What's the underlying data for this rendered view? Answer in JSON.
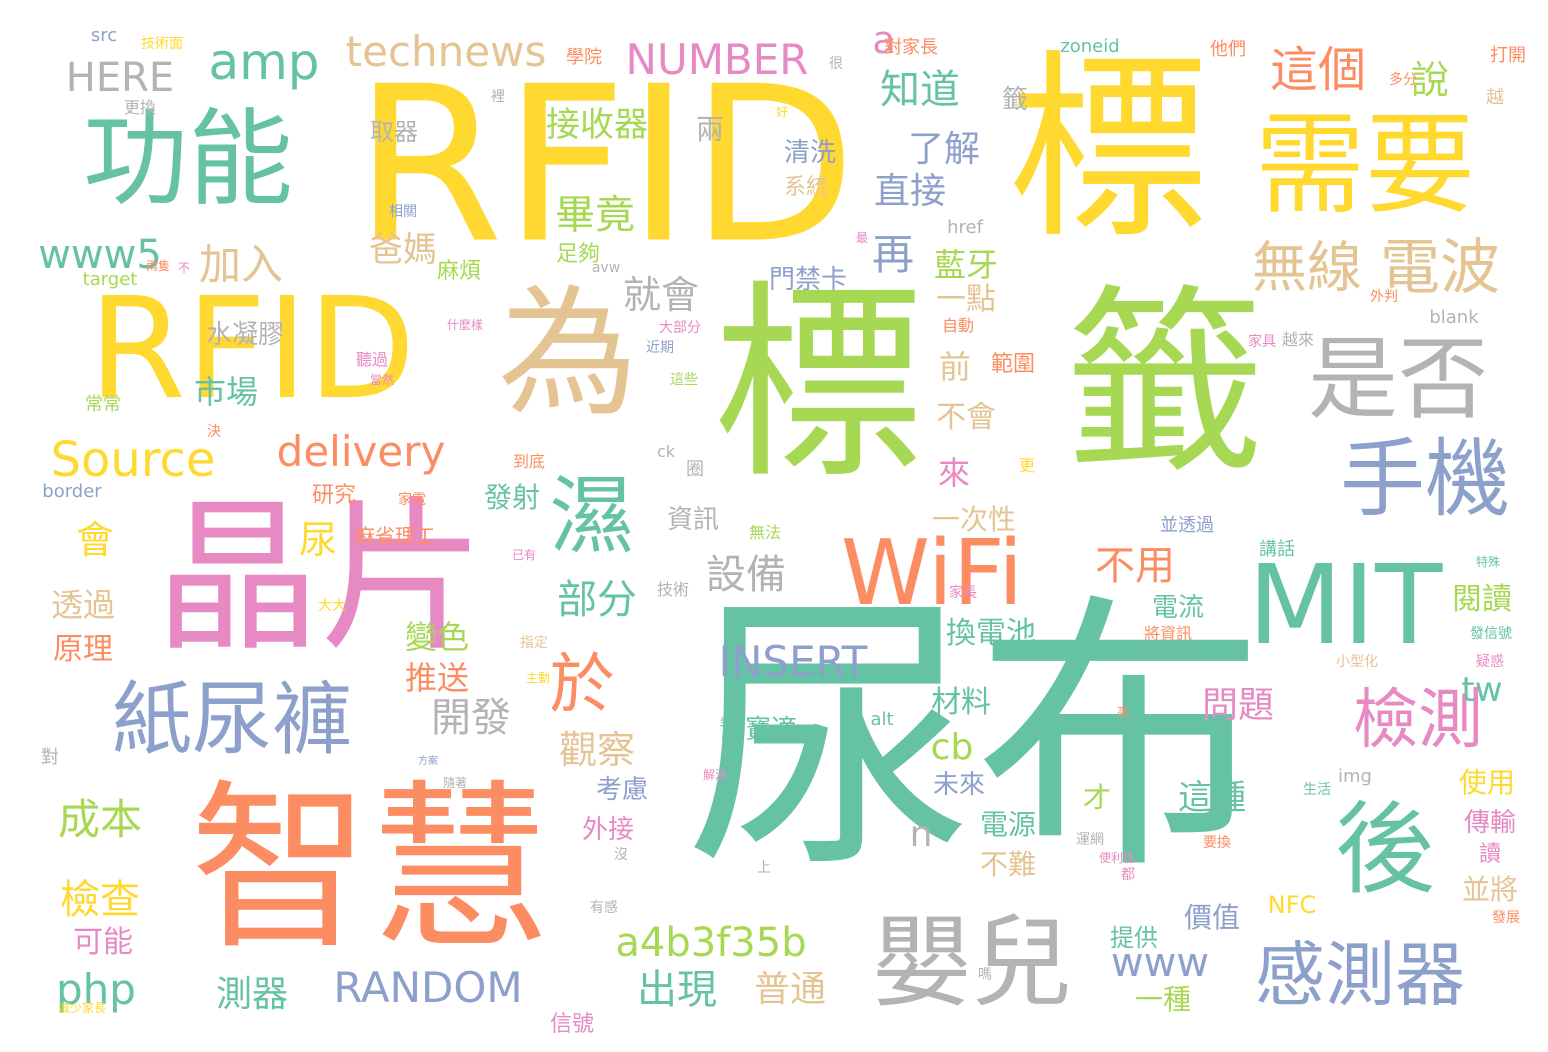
{
  "words": [
    {
      "id": "w1",
      "text": "尿布",
      "color": "#66c2a5"
    },
    {
      "id": "w2",
      "text": "RFID",
      "color": "#ffd92f"
    },
    {
      "id": "w3",
      "text": "標",
      "color": "#ffd92f"
    },
    {
      "id": "w4",
      "text": "標",
      "color": "#a6d854"
    },
    {
      "id": "w5",
      "text": "籤",
      "color": "#a6d854"
    },
    {
      "id": "w6",
      "text": "RFID",
      "color": "#ffd92f"
    },
    {
      "id": "w7",
      "text": "為",
      "color": "#e5c494"
    },
    {
      "id": "w8",
      "text": "智慧",
      "color": "#fc8d62"
    },
    {
      "id": "w9",
      "text": "晶片",
      "color": "#e78ac3"
    },
    {
      "id": "w10",
      "text": "需要",
      "color": "#ffd92f"
    },
    {
      "id": "w11",
      "text": "功能",
      "color": "#66c2a5"
    },
    {
      "id": "w12",
      "text": "MIT",
      "color": "#66c2a5"
    },
    {
      "id": "w13",
      "text": "WiFi",
      "color": "#fc8d62"
    },
    {
      "id": "w14",
      "text": "紙尿褲",
      "color": "#8da0cb"
    },
    {
      "id": "w15",
      "text": "嬰兒",
      "color": "#b3b3b3"
    },
    {
      "id": "w16",
      "text": "後",
      "color": "#66c2a5"
    },
    {
      "id": "w17",
      "text": "是否",
      "color": "#b3b3b3"
    },
    {
      "id": "w18",
      "text": "手機",
      "color": "#8da0cb"
    },
    {
      "id": "w19",
      "text": "濕",
      "color": "#66c2a5"
    },
    {
      "id": "w20",
      "text": "感測器",
      "color": "#8da0cb"
    },
    {
      "id": "w21",
      "text": "檢測",
      "color": "#e78ac3"
    },
    {
      "id": "w22",
      "text": "無線",
      "color": "#e5c494"
    },
    {
      "id": "w23",
      "text": "電波",
      "color": "#e5c494"
    },
    {
      "id": "w24",
      "text": "於",
      "color": "#fc8d62"
    },
    {
      "id": "w25",
      "text": "這個",
      "color": "#fc8d62"
    },
    {
      "id": "w26",
      "text": "amp",
      "color": "#66c2a5"
    },
    {
      "id": "w27",
      "text": "technews",
      "color": "#e5c494"
    },
    {
      "id": "w28",
      "text": "NUMBER",
      "color": "#e78ac3"
    },
    {
      "id": "w29",
      "text": "HERE",
      "color": "#b3b3b3"
    },
    {
      "id": "w30",
      "text": "INSERT",
      "color": "#8da0cb"
    },
    {
      "id": "w31",
      "text": "RANDOM",
      "color": "#8da0cb"
    },
    {
      "id": "w32",
      "text": "Source",
      "color": "#ffd92f"
    },
    {
      "id": "w33",
      "text": "delivery",
      "color": "#fc8d62"
    },
    {
      "id": "w34",
      "text": "a4b3f35b",
      "color": "#a6d854"
    },
    {
      "id": "w35",
      "text": "www",
      "color": "#8da0cb"
    },
    {
      "id": "w36",
      "text": "www5",
      "color": "#66c2a5"
    },
    {
      "id": "w37",
      "text": "php",
      "color": "#66c2a5"
    },
    {
      "id": "w38",
      "text": "知道",
      "color": "#66c2a5"
    },
    {
      "id": "w39",
      "text": "說",
      "color": "#a6d854"
    },
    {
      "id": "w40",
      "text": "再",
      "color": "#8da0cb"
    },
    {
      "id": "w41",
      "text": "加入",
      "color": "#e5c494"
    },
    {
      "id": "w42",
      "text": "畢竟",
      "color": "#a6d854"
    },
    {
      "id": "w43",
      "text": "部分",
      "color": "#66c2a5"
    },
    {
      "id": "w44",
      "text": "出現",
      "color": "#66c2a5"
    },
    {
      "id": "w45",
      "text": "普通",
      "color": "#e5c494"
    },
    {
      "id": "w46",
      "text": "觀察",
      "color": "#e5c494"
    },
    {
      "id": "w47",
      "text": "開發",
      "color": "#b3b3b3"
    },
    {
      "id": "w48",
      "text": "設備",
      "color": "#b3b3b3"
    },
    {
      "id": "w49",
      "text": "成本",
      "color": "#a6d854"
    },
    {
      "id": "w50",
      "text": "檢查",
      "color": "#ffd92f"
    },
    {
      "id": "w51",
      "text": "會",
      "color": "#ffd92f"
    },
    {
      "id": "w52",
      "text": "尿",
      "color": "#ffd92f"
    },
    {
      "id": "w53",
      "text": "就會",
      "color": "#b3b3b3"
    },
    {
      "id": "w54",
      "text": "不用",
      "color": "#fc8d62"
    },
    {
      "id": "w55",
      "text": "問題",
      "color": "#e78ac3"
    },
    {
      "id": "w56",
      "text": "閱讀",
      "color": "#a6d854"
    },
    {
      "id": "w57",
      "text": "tw",
      "color": "#66c2a5"
    },
    {
      "id": "w58",
      "text": "cb",
      "color": "#a6d854"
    },
    {
      "id": "w59",
      "text": "n",
      "color": "#b3b3b3"
    },
    {
      "id": "w60",
      "text": "a",
      "color": "#e78ac3"
    },
    {
      "id": "w61",
      "text": "接收器",
      "color": "#a6d854"
    },
    {
      "id": "w62",
      "text": "了解",
      "color": "#8da0cb"
    },
    {
      "id": "w63",
      "text": "直接",
      "color": "#8da0cb"
    },
    {
      "id": "w64",
      "text": "藍牙",
      "color": "#a6d854"
    },
    {
      "id": "w65",
      "text": "爸媽",
      "color": "#e5c494"
    },
    {
      "id": "w66",
      "text": "市場",
      "color": "#66c2a5"
    },
    {
      "id": "w67",
      "text": "透過",
      "color": "#e5c494"
    },
    {
      "id": "w68",
      "text": "原理",
      "color": "#fc8d62"
    },
    {
      "id": "w69",
      "text": "可能",
      "color": "#e78ac3"
    },
    {
      "id": "w70",
      "text": "測器",
      "color": "#66c2a5"
    },
    {
      "id": "w71",
      "text": "變色",
      "color": "#a6d854"
    },
    {
      "id": "w72",
      "text": "推送",
      "color": "#fc8d62"
    },
    {
      "id": "w73",
      "text": "材料",
      "color": "#66c2a5"
    },
    {
      "id": "w74",
      "text": "換電池",
      "color": "#66c2a5"
    },
    {
      "id": "w75",
      "text": "電源",
      "color": "#66c2a5"
    },
    {
      "id": "w76",
      "text": "不難",
      "color": "#e5c494"
    },
    {
      "id": "w77",
      "text": "這種",
      "color": "#66c2a5"
    },
    {
      "id": "w78",
      "text": "一種",
      "color": "#a6d854"
    },
    {
      "id": "w79",
      "text": "價值",
      "color": "#8da0cb"
    },
    {
      "id": "w80",
      "text": "並將",
      "color": "#e5c494"
    },
    {
      "id": "w81",
      "text": "傳輸",
      "color": "#e78ac3"
    },
    {
      "id": "w82",
      "text": "使用",
      "color": "#ffd92f"
    },
    {
      "id": "w83",
      "text": "前",
      "color": "#e5c494"
    },
    {
      "id": "w84",
      "text": "不會",
      "color": "#e5c494"
    },
    {
      "id": "w85",
      "text": "來",
      "color": "#e78ac3"
    },
    {
      "id": "w86",
      "text": "一點",
      "color": "#e5c494"
    },
    {
      "id": "w87",
      "text": "範圍",
      "color": "#fc8d62"
    },
    {
      "id": "w88",
      "text": "一次性",
      "color": "#e5c494"
    },
    {
      "id": "w89",
      "text": "發射",
      "color": "#66c2a5"
    },
    {
      "id": "w90",
      "text": "資訊",
      "color": "#b3b3b3"
    },
    {
      "id": "w91",
      "text": "研究",
      "color": "#fc8d62"
    },
    {
      "id": "w92",
      "text": "水凝膠",
      "color": "#b3b3b3"
    },
    {
      "id": "w93",
      "text": "清洗",
      "color": "#8da0cb"
    },
    {
      "id": "w94",
      "text": "系統",
      "color": "#e5c494"
    },
    {
      "id": "w95",
      "text": "兩",
      "color": "#b3b3b3"
    },
    {
      "id": "w96",
      "text": "籤",
      "color": "#b3b3b3"
    },
    {
      "id": "w97",
      "text": "門禁卡",
      "color": "#8da0cb"
    },
    {
      "id": "w98",
      "text": "麻煩",
      "color": "#a6d854"
    },
    {
      "id": "w99",
      "text": "足夠",
      "color": "#a6d854"
    },
    {
      "id": "w100",
      "text": "取器",
      "color": "#b3b3b3"
    },
    {
      "id": "w101",
      "text": "幫寶適",
      "color": "#66c2a5"
    },
    {
      "id": "w102",
      "text": "考慮",
      "color": "#8da0cb"
    },
    {
      "id": "w103",
      "text": "外接",
      "color": "#e78ac3"
    },
    {
      "id": "w104",
      "text": "未來",
      "color": "#8da0cb"
    },
    {
      "id": "w105",
      "text": "才",
      "color": "#a6d854"
    },
    {
      "id": "w106",
      "text": "電流",
      "color": "#66c2a5"
    },
    {
      "id": "w107",
      "text": "提供",
      "color": "#66c2a5"
    },
    {
      "id": "w108",
      "text": "信號",
      "color": "#e78ac3"
    },
    {
      "id": "w109",
      "text": "NFC",
      "color": "#ffd92f"
    },
    {
      "id": "w110",
      "text": "讀",
      "color": "#e78ac3"
    },
    {
      "id": "w111",
      "text": "麻省理工",
      "color": "#fc8d62"
    },
    {
      "id": "w112",
      "text": "技術",
      "color": "#b3b3b3"
    },
    {
      "id": "w113",
      "text": "無法",
      "color": "#a6d854"
    },
    {
      "id": "w114",
      "text": "講話",
      "color": "#66c2a5"
    },
    {
      "id": "w115",
      "text": "並透過",
      "color": "#8da0cb"
    },
    {
      "id": "w116",
      "text": "打開",
      "color": "#fc8d62"
    },
    {
      "id": "w117",
      "text": "越",
      "color": "#e5c494"
    },
    {
      "id": "w118",
      "text": "越來",
      "color": "#b3b3b3"
    },
    {
      "id": "w119",
      "text": "他們",
      "color": "#fc8d62"
    },
    {
      "id": "w120",
      "text": "多分",
      "color": "#fc8d62"
    },
    {
      "id": "w121",
      "text": "更換",
      "color": "#b3b3b3"
    },
    {
      "id": "w122",
      "text": "學院",
      "color": "#fc8d62"
    },
    {
      "id": "w123",
      "text": "對家長",
      "color": "#fc8d62"
    },
    {
      "id": "w124",
      "text": "技術面",
      "color": "#ffd92f"
    },
    {
      "id": "w125",
      "text": "家電",
      "color": "#fc8d62"
    },
    {
      "id": "w126",
      "text": "更",
      "color": "#ffd92f"
    },
    {
      "id": "w127",
      "text": "圈",
      "color": "#b3b3b3"
    },
    {
      "id": "w128",
      "text": "到底",
      "color": "#fc8d62"
    },
    {
      "id": "w129",
      "text": "決",
      "color": "#fc8d62"
    },
    {
      "id": "w130",
      "text": "常常",
      "color": "#a6d854"
    },
    {
      "id": "w131",
      "text": "聽過",
      "color": "#e78ac3"
    },
    {
      "id": "w132",
      "text": "當然",
      "color": "#e78ac3"
    },
    {
      "id": "w133",
      "text": "大部分",
      "color": "#e78ac3"
    },
    {
      "id": "w134",
      "text": "近期",
      "color": "#8da0cb"
    },
    {
      "id": "w135",
      "text": "這些",
      "color": "#a6d854"
    },
    {
      "id": "w136",
      "text": "什麼樣",
      "color": "#e78ac3"
    },
    {
      "id": "w137",
      "text": "自動",
      "color": "#fc8d62"
    },
    {
      "id": "w138",
      "text": "家具",
      "color": "#e78ac3"
    },
    {
      "id": "w139",
      "text": "相關",
      "color": "#8da0cb"
    },
    {
      "id": "w140",
      "text": "兩隻",
      "color": "#fc8d62"
    },
    {
      "id": "w141",
      "text": "大大",
      "color": "#ffd92f"
    },
    {
      "id": "w142",
      "text": "指定",
      "color": "#e5c494"
    },
    {
      "id": "w143",
      "text": "主動",
      "color": "#ffd92f"
    },
    {
      "id": "w144",
      "text": "小型化",
      "color": "#e5c494"
    },
    {
      "id": "w145",
      "text": "疑惑",
      "color": "#e78ac3"
    },
    {
      "id": "w146",
      "text": "發信號",
      "color": "#66c2a5"
    },
    {
      "id": "w147",
      "text": "將資訊",
      "color": "#fc8d62"
    },
    {
      "id": "w148",
      "text": "家長",
      "color": "#e78ac3"
    },
    {
      "id": "w149",
      "text": "生活",
      "color": "#66c2a5"
    },
    {
      "id": "w150",
      "text": "運網",
      "color": "#b3b3b3"
    },
    {
      "id": "w151",
      "text": "要換",
      "color": "#fc8d62"
    },
    {
      "id": "w152",
      "text": "隨著",
      "color": "#b3b3b3"
    },
    {
      "id": "w153",
      "text": "減少家長",
      "color": "#ffd92f"
    },
    {
      "id": "w154",
      "text": "發展",
      "color": "#fc8d62"
    },
    {
      "id": "w155",
      "text": "解決",
      "color": "#e78ac3"
    },
    {
      "id": "w156",
      "text": "便利性",
      "color": "#e78ac3"
    },
    {
      "id": "w157",
      "text": "有感",
      "color": "#b3b3b3"
    },
    {
      "id": "w158",
      "text": "都",
      "color": "#e78ac3"
    },
    {
      "id": "w159",
      "text": "嗎",
      "color": "#b3b3b3"
    },
    {
      "id": "w160",
      "text": "上",
      "color": "#b3b3b3"
    },
    {
      "id": "w161",
      "text": "沒",
      "color": "#b3b3b3"
    },
    {
      "id": "w162",
      "text": "對",
      "color": "#b3b3b3"
    },
    {
      "id": "w163",
      "text": "裡",
      "color": "#b3b3b3"
    },
    {
      "id": "w164",
      "text": "很",
      "color": "#b3b3b3"
    },
    {
      "id": "w165",
      "text": "好",
      "color": "#ffd92f"
    },
    {
      "id": "w166",
      "text": "最",
      "color": "#e78ac3"
    },
    {
      "id": "w167",
      "text": "高",
      "color": "#fc8d62"
    },
    {
      "id": "w168",
      "text": "不",
      "color": "#e78ac3"
    },
    {
      "id": "w169",
      "text": "已有",
      "color": "#e78ac3"
    },
    {
      "id": "w170",
      "text": "方案",
      "color": "#8da0cb"
    },
    {
      "id": "w171",
      "text": "特殊",
      "color": "#66c2a5"
    },
    {
      "id": "w172",
      "text": "外判",
      "color": "#fc8d62"
    },
    {
      "id": "w173",
      "text": "src",
      "color": "#8da0cb"
    },
    {
      "id": "w174",
      "text": "zoneid",
      "color": "#66c2a5"
    },
    {
      "id": "w175",
      "text": "href",
      "color": "#b3b3b3"
    },
    {
      "id": "w176",
      "text": "target",
      "color": "#a6d854"
    },
    {
      "id": "w177",
      "text": "blank",
      "color": "#b3b3b3"
    },
    {
      "id": "w178",
      "text": "border",
      "color": "#8da0cb"
    },
    {
      "id": "w179",
      "text": "alt",
      "color": "#66c2a5"
    },
    {
      "id": "w180",
      "text": "img",
      "color": "#b3b3b3"
    },
    {
      "id": "w181",
      "text": "ck",
      "color": "#b3b3b3"
    },
    {
      "id": "w182",
      "text": "avw",
      "color": "#b3b3b3"
    }
  ]
}
